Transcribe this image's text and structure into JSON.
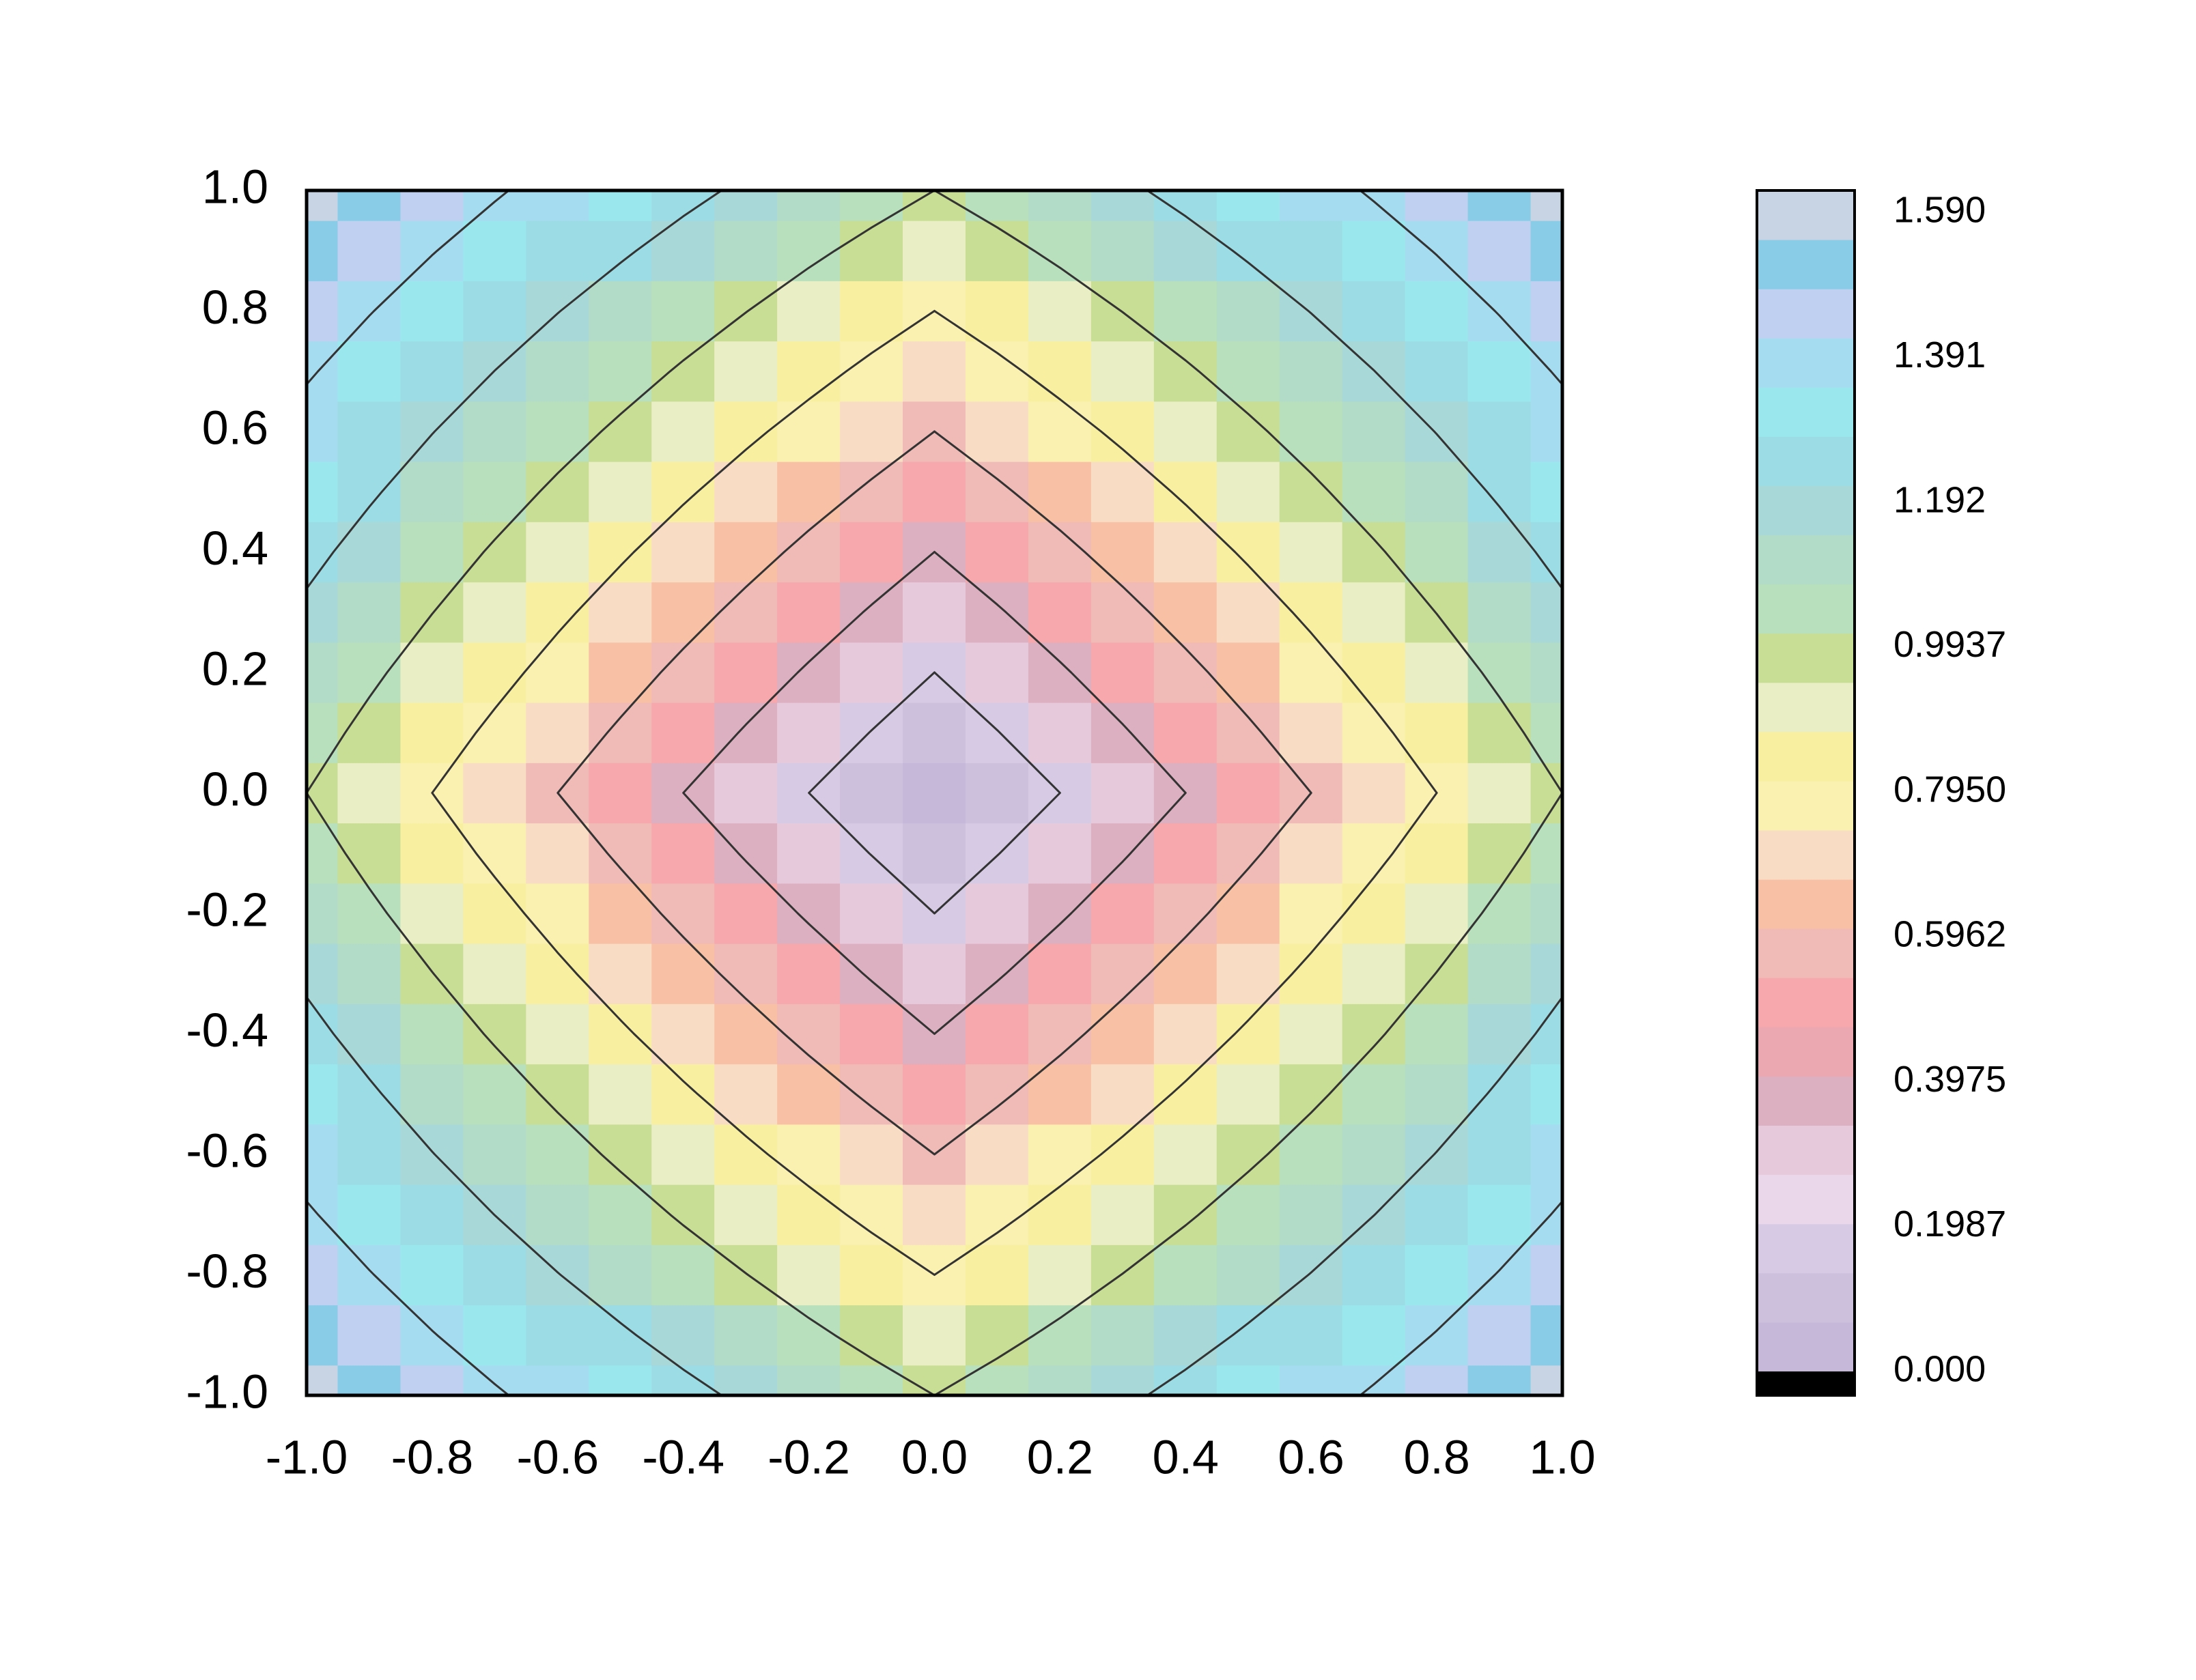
{
  "chart_data": {
    "type": "contour",
    "x": [
      -1,
      -0.9,
      -0.8,
      -0.7,
      -0.6,
      -0.5,
      -0.4,
      -0.3,
      -0.2,
      -0.1,
      0,
      0.1,
      0.2,
      0.3,
      0.4,
      0.5,
      0.6,
      0.7,
      0.8,
      0.9,
      1
    ],
    "y": [
      -1,
      -0.9,
      -0.8,
      -0.7,
      -0.6,
      -0.5,
      -0.4,
      -0.3,
      -0.2,
      -0.1,
      0,
      0.1,
      0.2,
      0.3,
      0.4,
      0.5,
      0.6,
      0.7,
      0.8,
      0.9,
      1
    ],
    "z": [
      [
        1.59,
        1.531,
        1.472,
        1.413,
        1.354,
        1.295,
        1.236,
        1.177,
        1.118,
        1.059,
        1,
        1.059,
        1.118,
        1.177,
        1.236,
        1.295,
        1.354,
        1.413,
        1.472,
        1.531,
        1.59
      ],
      [
        1.531,
        1.468,
        1.405,
        1.342,
        1.279,
        1.216,
        1.152,
        1.089,
        1.026,
        0.963,
        0.9,
        0.963,
        1.026,
        1.089,
        1.152,
        1.216,
        1.279,
        1.342,
        1.405,
        1.468,
        1.531
      ],
      [
        1.472,
        1.405,
        1.338,
        1.27,
        1.203,
        1.136,
        1.069,
        1.002,
        0.934,
        0.867,
        0.8,
        0.867,
        0.934,
        1.002,
        1.069,
        1.136,
        1.203,
        1.27,
        1.338,
        1.405,
        1.472
      ],
      [
        1.413,
        1.342,
        1.27,
        1.199,
        1.128,
        1.057,
        0.985,
        0.914,
        0.843,
        0.771,
        0.7,
        0.771,
        0.843,
        0.914,
        0.985,
        1.057,
        1.128,
        1.199,
        1.27,
        1.342,
        1.413
      ],
      [
        1.354,
        1.279,
        1.203,
        1.128,
        1.052,
        0.977,
        0.902,
        0.826,
        0.751,
        0.675,
        0.6,
        0.675,
        0.751,
        0.826,
        0.902,
        0.977,
        1.052,
        1.128,
        1.203,
        1.279,
        1.354
      ],
      [
        1.295,
        1.216,
        1.136,
        1.057,
        0.977,
        0.898,
        0.818,
        0.739,
        0.659,
        0.58,
        0.5,
        0.58,
        0.659,
        0.739,
        0.818,
        0.898,
        0.977,
        1.057,
        1.136,
        1.216,
        1.295
      ],
      [
        1.236,
        1.152,
        1.069,
        0.985,
        0.902,
        0.818,
        0.734,
        0.651,
        0.567,
        0.484,
        0.4,
        0.484,
        0.567,
        0.651,
        0.734,
        0.818,
        0.902,
        0.985,
        1.069,
        1.152,
        1.236
      ],
      [
        1.177,
        1.089,
        1.002,
        0.914,
        0.826,
        0.739,
        0.651,
        0.563,
        0.475,
        0.388,
        0.3,
        0.388,
        0.475,
        0.563,
        0.651,
        0.739,
        0.826,
        0.914,
        1.002,
        1.089,
        1.177
      ],
      [
        1.118,
        1.026,
        0.934,
        0.843,
        0.751,
        0.659,
        0.567,
        0.475,
        0.384,
        0.292,
        0.2,
        0.292,
        0.384,
        0.475,
        0.567,
        0.659,
        0.751,
        0.843,
        0.934,
        1.026,
        1.118
      ],
      [
        1.059,
        0.963,
        0.867,
        0.771,
        0.675,
        0.58,
        0.484,
        0.388,
        0.292,
        0.196,
        0.1,
        0.196,
        0.292,
        0.388,
        0.484,
        0.58,
        0.675,
        0.771,
        0.867,
        0.963,
        1.059
      ],
      [
        1,
        0.9,
        0.8,
        0.7,
        0.6,
        0.5,
        0.4,
        0.3,
        0.2,
        0.1,
        0,
        0.1,
        0.2,
        0.3,
        0.4,
        0.5,
        0.6,
        0.7,
        0.8,
        0.9,
        1
      ],
      [
        1.059,
        0.963,
        0.867,
        0.771,
        0.675,
        0.58,
        0.484,
        0.388,
        0.292,
        0.196,
        0.1,
        0.196,
        0.292,
        0.388,
        0.484,
        0.58,
        0.675,
        0.771,
        0.867,
        0.963,
        1.059
      ],
      [
        1.118,
        1.026,
        0.934,
        0.843,
        0.751,
        0.659,
        0.567,
        0.475,
        0.384,
        0.292,
        0.2,
        0.292,
        0.384,
        0.475,
        0.567,
        0.659,
        0.751,
        0.843,
        0.934,
        1.026,
        1.118
      ],
      [
        1.177,
        1.089,
        1.002,
        0.914,
        0.826,
        0.739,
        0.651,
        0.563,
        0.475,
        0.388,
        0.3,
        0.388,
        0.475,
        0.563,
        0.651,
        0.739,
        0.826,
        0.914,
        1.002,
        1.089,
        1.177
      ],
      [
        1.236,
        1.152,
        1.069,
        0.985,
        0.902,
        0.818,
        0.734,
        0.651,
        0.567,
        0.484,
        0.4,
        0.484,
        0.567,
        0.651,
        0.734,
        0.818,
        0.902,
        0.985,
        1.069,
        1.152,
        1.236
      ],
      [
        1.295,
        1.216,
        1.136,
        1.057,
        0.977,
        0.898,
        0.818,
        0.739,
        0.659,
        0.58,
        0.5,
        0.58,
        0.659,
        0.739,
        0.818,
        0.898,
        0.977,
        1.057,
        1.136,
        1.216,
        1.295
      ],
      [
        1.354,
        1.279,
        1.203,
        1.128,
        1.052,
        0.977,
        0.902,
        0.826,
        0.751,
        0.675,
        0.6,
        0.675,
        0.751,
        0.826,
        0.902,
        0.977,
        1.052,
        1.128,
        1.203,
        1.279,
        1.354
      ],
      [
        1.413,
        1.342,
        1.27,
        1.199,
        1.128,
        1.057,
        0.985,
        0.914,
        0.843,
        0.771,
        0.7,
        0.771,
        0.843,
        0.914,
        0.985,
        1.057,
        1.128,
        1.199,
        1.27,
        1.342,
        1.413
      ],
      [
        1.472,
        1.405,
        1.338,
        1.27,
        1.203,
        1.136,
        1.069,
        1.002,
        0.934,
        0.867,
        0.8,
        0.867,
        0.934,
        1.002,
        1.069,
        1.136,
        1.203,
        1.27,
        1.338,
        1.405,
        1.472
      ],
      [
        1.531,
        1.468,
        1.405,
        1.342,
        1.279,
        1.216,
        1.152,
        1.089,
        1.026,
        0.963,
        0.9,
        0.963,
        1.026,
        1.089,
        1.152,
        1.216,
        1.279,
        1.342,
        1.405,
        1.468,
        1.531
      ],
      [
        1.59,
        1.531,
        1.472,
        1.413,
        1.354,
        1.295,
        1.236,
        1.177,
        1.118,
        1.059,
        1,
        1.059,
        1.118,
        1.177,
        1.236,
        1.295,
        1.354,
        1.413,
        1.472,
        1.531,
        1.59
      ]
    ],
    "levels": [
      0.2,
      0.4,
      0.6,
      0.8,
      1.0,
      1.2,
      1.4
    ],
    "line_color": "#333333",
    "xlim": [
      -1,
      1
    ],
    "ylim": [
      -1,
      1
    ],
    "xticks": [
      {
        "value": -1,
        "label": "-1.0"
      },
      -0.8,
      -0.6,
      -0.4,
      -0.2,
      {
        "value": 0,
        "label": "0.0"
      },
      0.2,
      0.4,
      0.6,
      0.8,
      {
        "value": 1,
        "label": "1.0"
      }
    ],
    "yticks": [
      {
        "value": -1,
        "label": "-1.0"
      },
      -0.8,
      -0.6,
      -0.4,
      -0.2,
      {
        "value": 0,
        "label": "0.0"
      },
      0.2,
      0.4,
      0.6,
      0.8,
      {
        "value": 1,
        "label": "1.0"
      }
    ],
    "clim": [
      0,
      1.62
    ],
    "cticks": [
      {
        "value": 0,
        "label": "0.000"
      },
      0.1987,
      0.3975,
      0.5962,
      {
        "value": 0.795,
        "label": "0.7950"
      },
      0.9937,
      1.192,
      1.391,
      {
        "value": 1.59,
        "label": "1.590"
      }
    ],
    "under_color": "#000000",
    "colors": [
      "#c6b8d8",
      "#cdc0dc",
      "#d6cae4",
      "#ead8ea",
      "#e6cadc",
      "#dcb0c0",
      "#eca8b0",
      "#f6a8ac",
      "#f0bab6",
      "#f8c0a4",
      "#f8dcc4",
      "#faf0b0",
      "#f8f0a0",
      "#eaeec4",
      "#c8de94",
      "#b8e0bc",
      "#b2dcc8",
      "#a8d8d8",
      "#9cdce4",
      "#9ae8ee",
      "#a6dcf0",
      "#c0d0f0",
      "#88cce8",
      "#c8d4e4"
    ],
    "grid": false
  }
}
